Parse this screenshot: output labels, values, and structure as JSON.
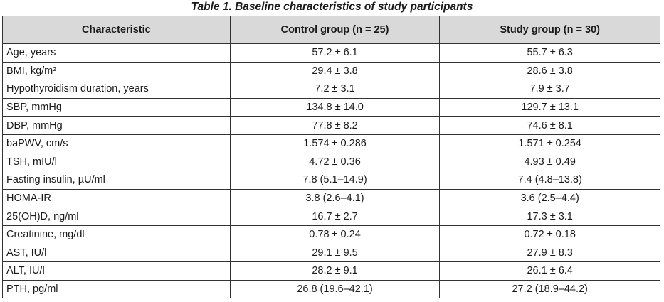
{
  "caption": "Table 1. Baseline characteristics of study participants",
  "table": {
    "headers": [
      "Characteristic",
      "Control group (n = 25)",
      "Study group (n = 30)"
    ],
    "rows": [
      {
        "characteristic": "Age, years",
        "control": "57.2 ± 6.1",
        "study": "55.7 ± 6.3"
      },
      {
        "characteristic": "BMI, kg/m²",
        "control": "29.4 ± 3.8",
        "study": "28.6 ± 3.8"
      },
      {
        "characteristic": "Hypothyroidism duration, years",
        "control": "7.2 ± 3.1",
        "study": "7.9 ± 3.7"
      },
      {
        "characteristic": "SBP, mmHg",
        "control": "134.8 ± 14.0",
        "study": "129.7 ± 13.1"
      },
      {
        "characteristic": "DBP, mmHg",
        "control": "77.8 ± 8.2",
        "study": "74.6 ± 8.1"
      },
      {
        "characteristic": "baPWV, cm/s",
        "control": "1.574 ± 0.286",
        "study": "1.571 ± 0.254"
      },
      {
        "characteristic": "TSH, mIU/l",
        "control": "4.72 ± 0.36",
        "study": "4.93 ± 0.49"
      },
      {
        "characteristic": "Fasting insulin, µU/ml",
        "control": "7.8 (5.1–14.9)",
        "study": "7.4 (4.8–13.8)"
      },
      {
        "characteristic": "HOMA-IR",
        "control": "3.8 (2.6–4.1)",
        "study": "3.6 (2.5–4.4)"
      },
      {
        "characteristic": "25(OH)D, ng/ml",
        "control": "16.7 ± 2.7",
        "study": "17.3 ± 3.1"
      },
      {
        "characteristic": "Creatinine, mg/dl",
        "control": "0.78 ± 0.24",
        "study": "0.72 ± 0.18"
      },
      {
        "characteristic": "AST, IU/l",
        "control": "29.1 ± 9.5",
        "study": "27.9 ± 8.3"
      },
      {
        "characteristic": "ALT, IU/l",
        "control": "28.2 ± 9.1",
        "study": "26.1 ± 6.4"
      },
      {
        "characteristic": "PTH, pg/ml",
        "control": "26.8 (19.6–42.1)",
        "study": "27.2 (18.9–44.2)"
      }
    ]
  },
  "colors": {
    "header_background": "#d9d9d9",
    "border": "#333333",
    "text": "#1a1a1a"
  }
}
